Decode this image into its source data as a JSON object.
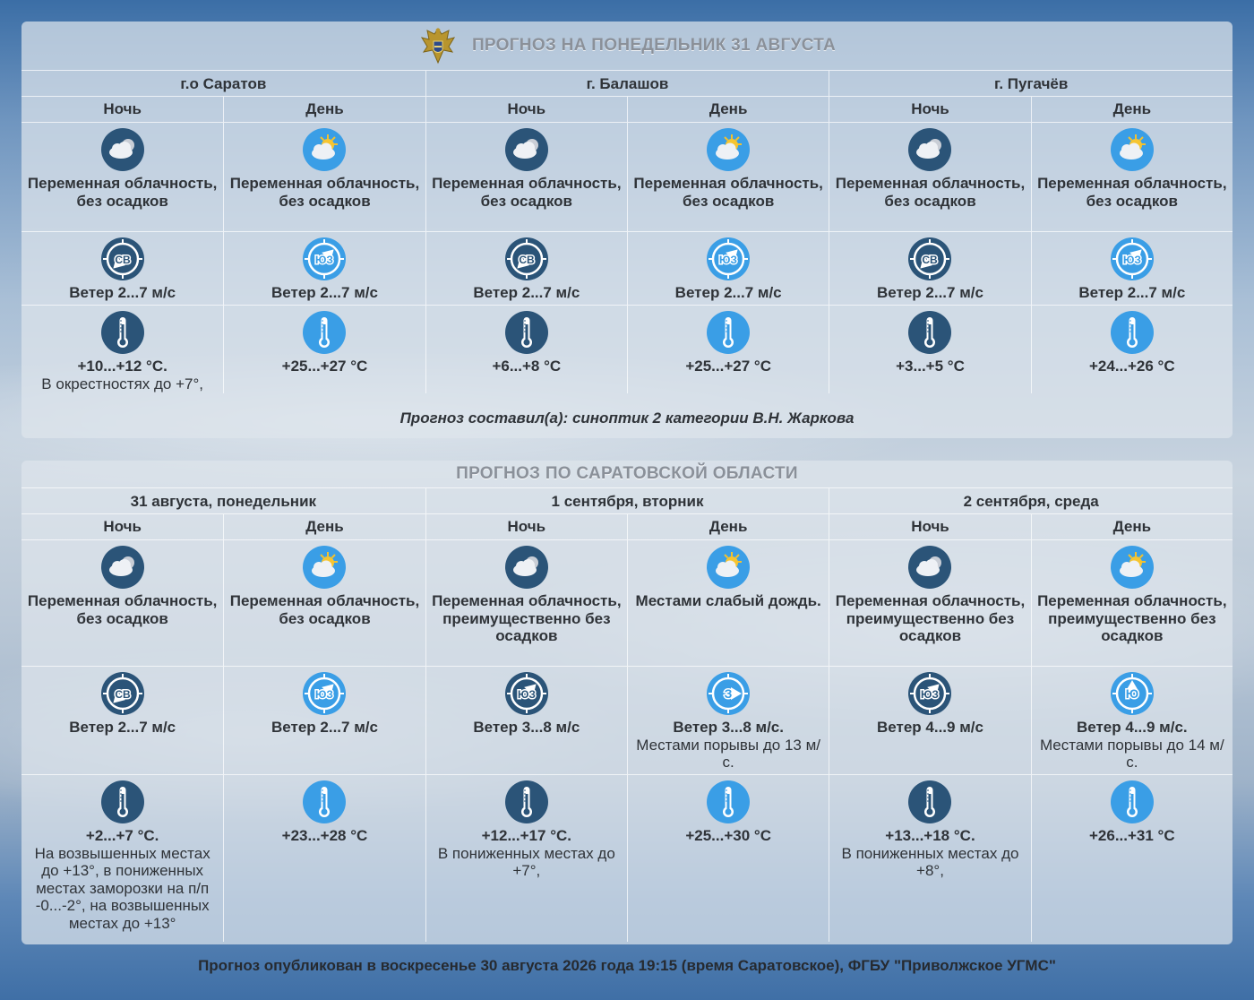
{
  "city_panel": {
    "title": "ПРОГНОЗ НА ПОНЕДЕЛЬНИК 31 АВГУСТА",
    "locations": [
      "г.о Саратов",
      "г. Балашов",
      "г. Пугачёв"
    ],
    "columns": [
      {
        "period": "Ночь",
        "sky_icon": "night-cloud-icon",
        "sky": "Переменная облачность, без осадков",
        "wind_icon": "wind-ne-icon",
        "wind_dir": "СВ",
        "wind": "Ветер 2...7 м/с",
        "wind_note": "",
        "temp": "+10...+12 °C.",
        "temp_note": "В окрестностях до +7°,"
      },
      {
        "period": "День",
        "sky_icon": "day-cloud-icon",
        "sky": "Переменная облачность, без осадков",
        "wind_icon": "wind-sw-icon",
        "wind_dir": "ЮЗ",
        "wind": "Ветер 2...7 м/с",
        "wind_note": "",
        "temp": "+25...+27 °C",
        "temp_note": ""
      },
      {
        "period": "Ночь",
        "sky_icon": "night-cloud-icon",
        "sky": "Переменная облачность, без осадков",
        "wind_icon": "wind-ne-icon",
        "wind_dir": "СВ",
        "wind": "Ветер 2...7 м/с",
        "wind_note": "",
        "temp": "+6...+8 °C",
        "temp_note": ""
      },
      {
        "period": "День",
        "sky_icon": "day-cloud-icon",
        "sky": "Переменная облачность, без осадков",
        "wind_icon": "wind-sw-icon",
        "wind_dir": "ЮЗ",
        "wind": "Ветер 2...7 м/с",
        "wind_note": "",
        "temp": "+25...+27 °C",
        "temp_note": ""
      },
      {
        "period": "Ночь",
        "sky_icon": "night-cloud-icon",
        "sky": "Переменная облачность, без осадков",
        "wind_icon": "wind-ne-icon",
        "wind_dir": "СВ",
        "wind": "Ветер 2...7 м/с",
        "wind_note": "",
        "temp": "+3...+5 °C",
        "temp_note": ""
      },
      {
        "period": "День",
        "sky_icon": "day-cloud-icon",
        "sky": "Переменная облачность, без осадков",
        "wind_icon": "wind-sw-icon",
        "wind_dir": "ЮЗ",
        "wind": "Ветер 2...7 м/с",
        "wind_note": "",
        "temp": "+24...+26 °C",
        "temp_note": ""
      }
    ],
    "author": "Прогноз составил(а): синоптик 2 категории В.Н. Жаркова"
  },
  "region_panel": {
    "title": "ПРОГНОЗ ПО САРАТОВСКОЙ ОБЛАСТИ",
    "days": [
      "31 августа, понедельник",
      "1 сентября, вторник",
      "2 сентября, среда"
    ],
    "columns": [
      {
        "period": "Ночь",
        "sky_icon": "night-cloud-icon",
        "sky": "Переменная облачность, без осадков",
        "wind_icon": "wind-ne-icon",
        "wind_dir": "СВ",
        "wind": "Ветер 2...7 м/с",
        "wind_note": "",
        "temp": "+2...+7 °C.",
        "temp_note": "На возвышенных местах до +13°, в пониженных местах заморозки на п/п -0...-2°, на возвышенных местах до +13°"
      },
      {
        "period": "День",
        "sky_icon": "day-cloud-icon",
        "sky": "Переменная облачность, без осадков",
        "wind_icon": "wind-sw-icon",
        "wind_dir": "ЮЗ",
        "wind": "Ветер 2...7 м/с",
        "wind_note": "",
        "temp": "+23...+28 °C",
        "temp_note": ""
      },
      {
        "period": "Ночь",
        "sky_icon": "night-cloud-icon",
        "sky": "Переменная облачность, преимущественно без осадков",
        "wind_icon": "wind-sw-icon",
        "wind_dir": "ЮЗ",
        "wind": "Ветер 3...8 м/с",
        "wind_note": "",
        "temp": "+12...+17 °C.",
        "temp_note": "В пониженных местах до +7°,"
      },
      {
        "period": "День",
        "sky_icon": "day-cloud-icon",
        "sky": "Местами слабый дождь.",
        "wind_icon": "wind-w-icon",
        "wind_dir": "З",
        "wind": "Ветер 3...8 м/с.",
        "wind_note": "Местами порывы до 13 м/с.",
        "temp": "+25...+30 °C",
        "temp_note": ""
      },
      {
        "period": "Ночь",
        "sky_icon": "night-cloud-icon",
        "sky": "Переменная облачность, преимущественно без осадков",
        "wind_icon": "wind-sw-icon",
        "wind_dir": "ЮЗ",
        "wind": "Ветер 4...9 м/с",
        "wind_note": "",
        "temp": "+13...+18 °C.",
        "temp_note": "В пониженных местах до +8°,"
      },
      {
        "period": "День",
        "sky_icon": "day-cloud-icon",
        "sky": "Переменная облачность, преимущественно без осадков",
        "wind_icon": "wind-s-icon",
        "wind_dir": "Ю",
        "wind": "Ветер 4...9 м/с.",
        "wind_note": "Местами порывы до 14 м/с.",
        "temp": "+26...+31 °C",
        "temp_note": ""
      }
    ]
  },
  "footer": {
    "published": "Прогноз опубликован в воскресенье 30 августа 2026 года 19:15 (время Саратовское), ФГБУ \"Приволжское УГМС\""
  },
  "colors": {
    "night_icon": "#2b5478",
    "day_icon": "#3a9ee6",
    "panel_text": "#2f3338",
    "title_text": "#8a9099"
  }
}
